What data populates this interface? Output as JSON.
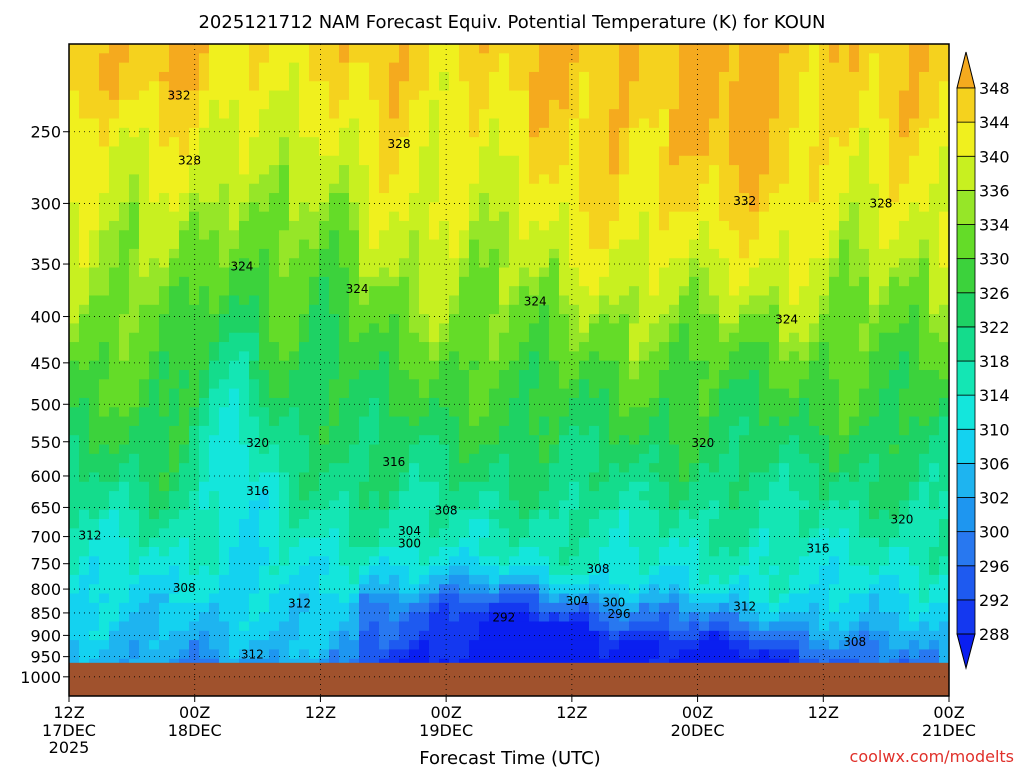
{
  "chart_data": {
    "type": "heatmap",
    "title": "2025121712 NAM Forecast Equiv. Potential Temperature (K) for KOUN",
    "xlabel": "Forecast Time (UTC)",
    "ylabel": "",
    "credit": "coolwx.com/modelts",
    "x_ticks": [
      {
        "hour": 0,
        "label1": "12Z",
        "label2": "17DEC",
        "label3": "2025"
      },
      {
        "hour": 12,
        "label1": "00Z",
        "label2": "18DEC",
        "label3": ""
      },
      {
        "hour": 24,
        "label1": "12Z",
        "label2": "",
        "label3": ""
      },
      {
        "hour": 36,
        "label1": "00Z",
        "label2": "19DEC",
        "label3": ""
      },
      {
        "hour": 48,
        "label1": "12Z",
        "label2": "",
        "label3": ""
      },
      {
        "hour": 60,
        "label1": "00Z",
        "label2": "20DEC",
        "label3": ""
      },
      {
        "hour": 72,
        "label1": "12Z",
        "label2": "",
        "label3": ""
      },
      {
        "hour": 84,
        "label1": "00Z",
        "label2": "21DEC",
        "label3": ""
      }
    ],
    "x_range_hours": [
      0,
      84
    ],
    "y_ticks": [
      250,
      300,
      350,
      400,
      450,
      500,
      550,
      600,
      650,
      700,
      750,
      800,
      850,
      900,
      950,
      1000
    ],
    "y_range_hPa": [
      200,
      1050
    ],
    "y_scale": "log",
    "grid": true,
    "colorbar": {
      "levels": [
        288,
        292,
        296,
        300,
        302,
        306,
        310,
        314,
        318,
        322,
        326,
        330,
        334,
        336,
        340,
        344,
        348
      ],
      "labels": [
        "288",
        "292",
        "296",
        "300",
        "302",
        "306",
        "310",
        "314",
        "318",
        "322",
        "326",
        "330",
        "334",
        "336",
        "340",
        "344",
        "348"
      ],
      "colors": [
        "#0a1ff0",
        "#1438f0",
        "#1e5af0",
        "#2878f0",
        "#1e96f0",
        "#1eb4f0",
        "#14d2f0",
        "#14e6dc",
        "#14e6b4",
        "#14dc8c",
        "#1ed264",
        "#3cd23c",
        "#64dc28",
        "#96e628",
        "#c8f020",
        "#f0f01e",
        "#f5d21e",
        "#f5aa1e"
      ]
    },
    "ground_color": "#a0522d",
    "surface_pressure_hPa": 965,
    "contour_labels": [
      {
        "text": "332",
        "hour": 10.5,
        "p": 228
      },
      {
        "text": "328",
        "hour": 11.5,
        "p": 269
      },
      {
        "text": "328",
        "hour": 31.5,
        "p": 258
      },
      {
        "text": "332",
        "hour": 64.5,
        "p": 298
      },
      {
        "text": "328",
        "hour": 77.5,
        "p": 300
      },
      {
        "text": "324",
        "hour": 16.5,
        "p": 352
      },
      {
        "text": "324",
        "hour": 27.5,
        "p": 373
      },
      {
        "text": "324",
        "hour": 44.5,
        "p": 385
      },
      {
        "text": "324",
        "hour": 68.5,
        "p": 403
      },
      {
        "text": "320",
        "hour": 18,
        "p": 552
      },
      {
        "text": "316",
        "hour": 31,
        "p": 579
      },
      {
        "text": "316",
        "hour": 18,
        "p": 623
      },
      {
        "text": "308",
        "hour": 36,
        "p": 655
      },
      {
        "text": "312",
        "hour": 2,
        "p": 698
      },
      {
        "text": "304",
        "hour": 32.5,
        "p": 690
      },
      {
        "text": "300",
        "hour": 32.5,
        "p": 712
      },
      {
        "text": "320",
        "hour": 60.5,
        "p": 552
      },
      {
        "text": "320",
        "hour": 79.5,
        "p": 670
      },
      {
        "text": "316",
        "hour": 71.5,
        "p": 722
      },
      {
        "text": "308",
        "hour": 50.5,
        "p": 760
      },
      {
        "text": "308",
        "hour": 11,
        "p": 798
      },
      {
        "text": "304",
        "hour": 48.5,
        "p": 825
      },
      {
        "text": "300",
        "hour": 52,
        "p": 828
      },
      {
        "text": "296",
        "hour": 52.5,
        "p": 852
      },
      {
        "text": "312",
        "hour": 64.5,
        "p": 836
      },
      {
        "text": "312",
        "hour": 22,
        "p": 830
      },
      {
        "text": "292",
        "hour": 41.5,
        "p": 860
      },
      {
        "text": "308",
        "hour": 75,
        "p": 915
      },
      {
        "text": "312",
        "hour": 17.5,
        "p": 945
      }
    ]
  }
}
